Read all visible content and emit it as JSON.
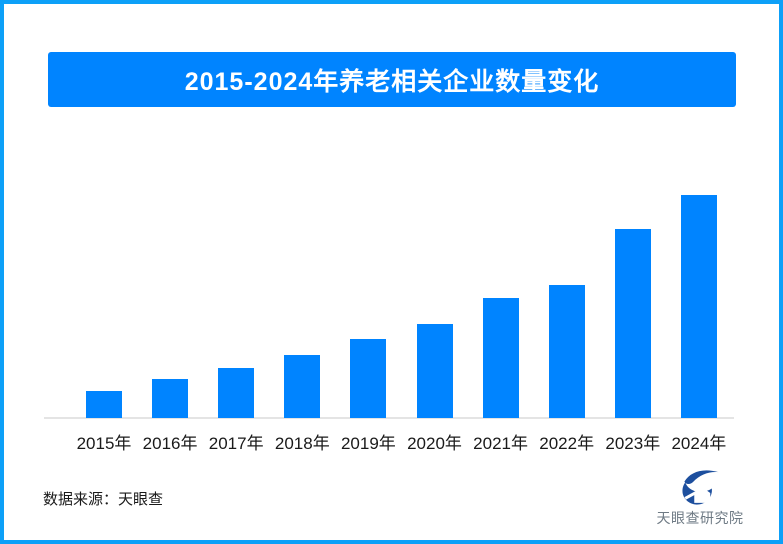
{
  "page": {
    "background": "#ffffff",
    "border_color": "#0da0f8"
  },
  "header": {
    "title": "2015-2024年养老相关企业数量变化",
    "banner_color": "#0084ff",
    "title_color": "#ffffff"
  },
  "chart_data": {
    "type": "bar",
    "title": "2015-2024年养老相关企业数量变化",
    "categories": [
      "2015年",
      "2016年",
      "2017年",
      "2018年",
      "2019年",
      "2020年",
      "2021年",
      "2022年",
      "2023年",
      "2024年"
    ],
    "values": [
      27,
      39,
      50,
      63,
      79,
      94,
      120,
      133,
      189,
      223
    ],
    "value_scale": "relative-pixel-heights (no numeric axis, gridlines or data labels are shown in the image)",
    "bar_color": "#0084ff",
    "axis_line_color": "#e4e4e4",
    "tick_label_color": "#1a1a1a",
    "xlabel": "",
    "ylabel": "",
    "y_axis_shown": false,
    "gridlines": false,
    "legend_shown": false,
    "value_labels_shown": false
  },
  "footer": {
    "source_label": "数据来源：天眼查",
    "logo_name": "天眼查研究院",
    "logo_color": "#1d4f9e",
    "logo_text_color": "#6e7a84"
  }
}
